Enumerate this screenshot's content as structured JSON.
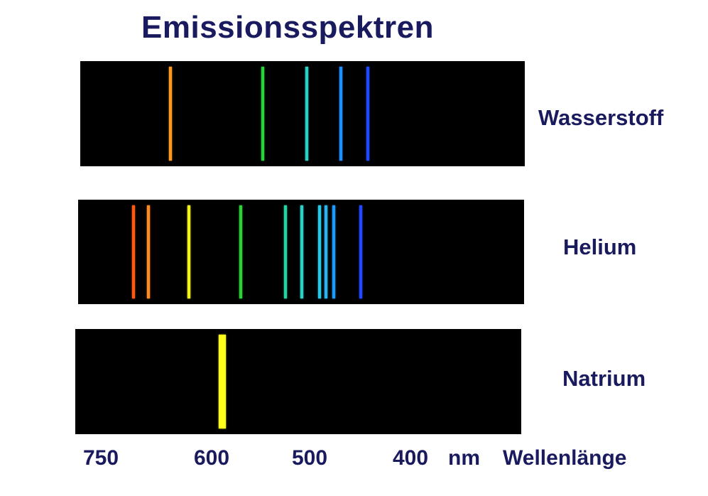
{
  "title": "Emissionsspektren",
  "spectra": [
    {
      "element": "Wasserstoff",
      "lines": [
        {
          "wavelength": 656,
          "color": "#ff9a1e"
        },
        {
          "wavelength": 548,
          "color": "#2bd23c"
        },
        {
          "wavelength": 503,
          "color": "#28d2c8"
        },
        {
          "wavelength": 469,
          "color": "#1e90ff"
        },
        {
          "wavelength": 442,
          "color": "#2346ff"
        }
      ]
    },
    {
      "element": "Helium",
      "lines": [
        {
          "wavelength": 706,
          "color": "#ff5a14"
        },
        {
          "wavelength": 686,
          "color": "#ff8a1e"
        },
        {
          "wavelength": 631,
          "color": "#f2f21e"
        },
        {
          "wavelength": 570,
          "color": "#2ad23a"
        },
        {
          "wavelength": 525,
          "color": "#28d2a0"
        },
        {
          "wavelength": 508,
          "color": "#28d2c8"
        },
        {
          "wavelength": 490,
          "color": "#28c8e6"
        },
        {
          "wavelength": 484,
          "color": "#28b4f0"
        },
        {
          "wavelength": 476,
          "color": "#1e9aff"
        },
        {
          "wavelength": 449,
          "color": "#2346ff"
        }
      ]
    },
    {
      "element": "Natrium",
      "lines": [
        {
          "wavelength": 589,
          "color": "#ffff1e",
          "thick": true
        }
      ]
    }
  ],
  "axis": {
    "ticks": [
      {
        "label": "750",
        "value": 750
      },
      {
        "label": "600",
        "value": 600
      },
      {
        "label": "500",
        "value": 500
      },
      {
        "label": "400",
        "value": 400
      }
    ],
    "unit": "nm",
    "label": "Wellenlänge"
  }
}
